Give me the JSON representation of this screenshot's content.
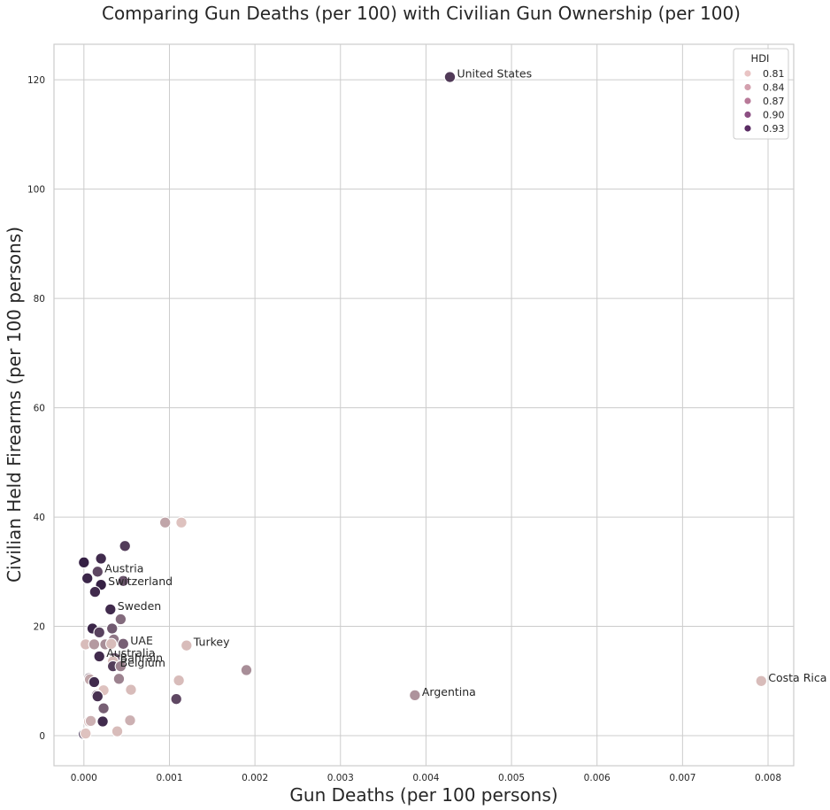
{
  "chart_data": {
    "type": "scatter",
    "title": "Comparing Gun Deaths (per 100) with Civilian Gun Ownership (per 100)",
    "xlabel": "Gun Deaths (per 100 persons)",
    "ylabel": "Civilian Held Firearms (per 100 persons)",
    "xlim": [
      -0.00035,
      0.0083
    ],
    "ylim": [
      -5.5,
      126.5
    ],
    "x_ticks": [
      "0.000",
      "0.001",
      "0.002",
      "0.003",
      "0.004",
      "0.005",
      "0.006",
      "0.007",
      "0.008"
    ],
    "x_tick_values": [
      0,
      0.001,
      0.002,
      0.003,
      0.004,
      0.005,
      0.006,
      0.007,
      0.008
    ],
    "y_ticks": [
      "0",
      "20",
      "40",
      "60",
      "80",
      "100",
      "120"
    ],
    "y_tick_values": [
      0,
      20,
      40,
      60,
      80,
      100,
      120
    ],
    "grid": true,
    "hue": "HDI",
    "legend": {
      "title": "HDI",
      "placement": "top-right",
      "entries": [
        {
          "label": "0.81",
          "color": "#e9c4c4"
        },
        {
          "label": "0.84",
          "color": "#d3a0ae"
        },
        {
          "label": "0.87",
          "color": "#b87998"
        },
        {
          "label": "0.90",
          "color": "#8c4f83"
        },
        {
          "label": "0.93",
          "color": "#5a2c63"
        }
      ]
    },
    "color_scale": {
      "min_hdi": 0.79,
      "max_hdi": 0.95,
      "low_color": "#f0d3cc",
      "high_color": "#2f1a40"
    },
    "points": [
      {
        "x": 0.00428,
        "y": 120.5,
        "hdi": 0.922,
        "label": "United States"
      },
      {
        "x": 0.00792,
        "y": 10.0,
        "hdi": 0.81,
        "label": "Costa Rica"
      },
      {
        "x": 0.00387,
        "y": 7.4,
        "hdi": 0.845,
        "label": "Argentina"
      },
      {
        "x": 0.0012,
        "y": 16.5,
        "hdi": 0.81,
        "label": "Turkey"
      },
      {
        "x": 0.0019,
        "y": 12.0,
        "hdi": 0.85,
        "label": ""
      },
      {
        "x": 0.00095,
        "y": 39.0,
        "hdi": 0.83,
        "label": ""
      },
      {
        "x": 0.00114,
        "y": 39.0,
        "hdi": 0.805,
        "label": ""
      },
      {
        "x": 0.00108,
        "y": 6.7,
        "hdi": 0.91,
        "label": ""
      },
      {
        "x": 0.00111,
        "y": 10.1,
        "hdi": 0.81,
        "label": ""
      },
      {
        "x": 0.00048,
        "y": 34.7,
        "hdi": 0.92,
        "label": ""
      },
      {
        "x": 0.0,
        "y": 31.7,
        "hdi": 0.945,
        "label": ""
      },
      {
        "x": 0.0002,
        "y": 32.4,
        "hdi": 0.935,
        "label": ""
      },
      {
        "x": 0.00016,
        "y": 30.0,
        "hdi": 0.91,
        "label": "Austria"
      },
      {
        "x": 4e-05,
        "y": 28.8,
        "hdi": 0.94,
        "label": ""
      },
      {
        "x": 0.00046,
        "y": 28.3,
        "hdi": 0.9,
        "label": ""
      },
      {
        "x": 0.0002,
        "y": 27.6,
        "hdi": 0.945,
        "label": "Switzerland"
      },
      {
        "x": 0.00013,
        "y": 26.3,
        "hdi": 0.935,
        "label": ""
      },
      {
        "x": 0.00031,
        "y": 23.1,
        "hdi": 0.935,
        "label": "Sweden"
      },
      {
        "x": 0.00043,
        "y": 21.3,
        "hdi": 0.88,
        "label": ""
      },
      {
        "x": 0.0001,
        "y": 19.6,
        "hdi": 0.94,
        "label": ""
      },
      {
        "x": 0.00033,
        "y": 19.6,
        "hdi": 0.895,
        "label": ""
      },
      {
        "x": 0.00018,
        "y": 18.9,
        "hdi": 0.915,
        "label": ""
      },
      {
        "x": 0.00035,
        "y": 17.6,
        "hdi": 0.87,
        "label": ""
      },
      {
        "x": 0.00046,
        "y": 16.8,
        "hdi": 0.89,
        "label": "UAE"
      },
      {
        "x": 2e-05,
        "y": 16.7,
        "hdi": 0.81,
        "label": ""
      },
      {
        "x": 0.00012,
        "y": 16.7,
        "hdi": 0.84,
        "label": ""
      },
      {
        "x": 0.00025,
        "y": 16.7,
        "hdi": 0.85,
        "label": ""
      },
      {
        "x": 0.00032,
        "y": 16.8,
        "hdi": 0.81,
        "label": ""
      },
      {
        "x": 0.00018,
        "y": 14.5,
        "hdi": 0.935,
        "label": "Australia"
      },
      {
        "x": 0.00036,
        "y": 14.2,
        "hdi": 0.9,
        "label": ""
      },
      {
        "x": 0.00034,
        "y": 13.6,
        "hdi": 0.81,
        "label": "Bahrain"
      },
      {
        "x": 0.00034,
        "y": 12.7,
        "hdi": 0.92,
        "label": "Belgium"
      },
      {
        "x": 0.00043,
        "y": 12.7,
        "hdi": 0.86,
        "label": ""
      },
      {
        "x": 0.00041,
        "y": 10.4,
        "hdi": 0.86,
        "label": ""
      },
      {
        "x": 6e-05,
        "y": 10.5,
        "hdi": 0.88,
        "label": ""
      },
      {
        "x": 7e-05,
        "y": 10.3,
        "hdi": 0.83,
        "label": ""
      },
      {
        "x": 0.00012,
        "y": 9.8,
        "hdi": 0.935,
        "label": ""
      },
      {
        "x": 0.00023,
        "y": 8.3,
        "hdi": 0.805,
        "label": ""
      },
      {
        "x": 0.00055,
        "y": 8.4,
        "hdi": 0.81,
        "label": ""
      },
      {
        "x": 0.00015,
        "y": 7.4,
        "hdi": 0.9,
        "label": ""
      },
      {
        "x": 0.00016,
        "y": 7.2,
        "hdi": 0.93,
        "label": ""
      },
      {
        "x": 0.00023,
        "y": 5.0,
        "hdi": 0.89,
        "label": ""
      },
      {
        "x": 6e-05,
        "y": 2.6,
        "hdi": 0.81,
        "label": ""
      },
      {
        "x": 8e-05,
        "y": 2.7,
        "hdi": 0.82,
        "label": ""
      },
      {
        "x": 0.00022,
        "y": 2.6,
        "hdi": 0.935,
        "label": ""
      },
      {
        "x": 0.00054,
        "y": 2.8,
        "hdi": 0.82,
        "label": ""
      },
      {
        "x": 0.00039,
        "y": 0.8,
        "hdi": 0.81,
        "label": ""
      },
      {
        "x": 0.0,
        "y": 0.3,
        "hdi": 0.94,
        "label": ""
      },
      {
        "x": 2e-05,
        "y": 0.4,
        "hdi": 0.805,
        "label": ""
      }
    ]
  }
}
